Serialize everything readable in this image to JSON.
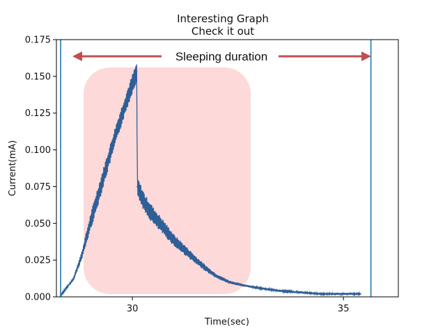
{
  "chart_data": {
    "type": "line",
    "title": "Interesting Graph",
    "subtitle": "Check it out",
    "xlabel": "Time(sec)",
    "ylabel": "Current(mA)",
    "xlim": [
      28.2,
      36.3
    ],
    "ylim": [
      0.0,
      0.175
    ],
    "xticks": [
      30,
      35
    ],
    "xtick_labels": [
      "30",
      "35"
    ],
    "yticks": [
      0.0,
      0.025,
      0.05,
      0.075,
      0.1,
      0.125,
      0.15,
      0.175
    ],
    "ytick_labels": [
      "0.000",
      "0.025",
      "0.050",
      "0.075",
      "0.100",
      "0.125",
      "0.150",
      "0.175"
    ],
    "grid": false,
    "series": [
      {
        "color": "#2e5f96",
        "x": [
          28.3,
          28.6,
          28.8,
          29.0,
          29.2,
          29.4,
          29.6,
          29.8,
          30.0,
          30.1,
          30.12,
          30.3,
          30.5,
          30.8,
          31.0,
          31.2,
          31.5,
          31.8,
          32.0,
          32.3,
          32.6,
          33.0,
          33.5,
          34.0,
          34.5,
          35.0,
          35.4
        ],
        "y": [
          0.001,
          0.012,
          0.028,
          0.05,
          0.07,
          0.09,
          0.11,
          0.128,
          0.145,
          0.153,
          0.075,
          0.063,
          0.055,
          0.045,
          0.038,
          0.033,
          0.025,
          0.018,
          0.014,
          0.01,
          0.008,
          0.006,
          0.004,
          0.003,
          0.002,
          0.002,
          0.002
        ]
      }
    ],
    "vlines": [
      28.3,
      35.65
    ],
    "vline_color": "#1f77b4",
    "highlight_color": "#fdd9d9",
    "arrow_color": "#c0504d",
    "annotation": "Sleeping duration"
  }
}
